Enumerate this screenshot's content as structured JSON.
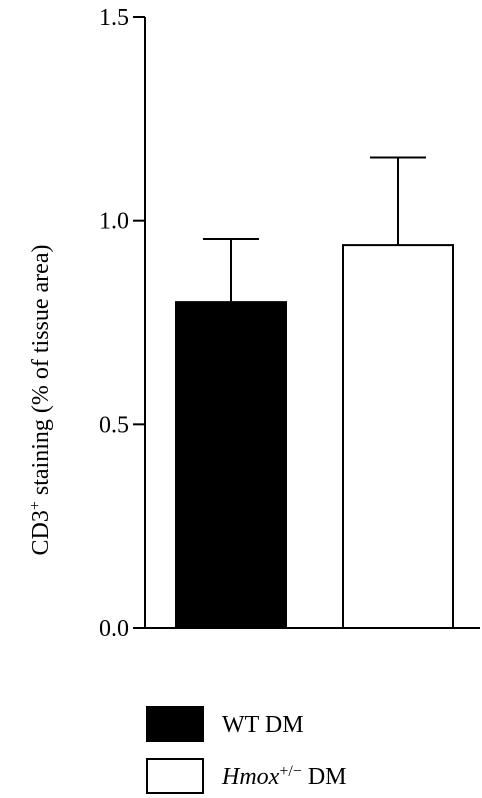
{
  "chart_data": {
    "type": "bar",
    "categories": [
      "WT DM",
      "Hmox+/− DM"
    ],
    "values": [
      0.8,
      0.94
    ],
    "errors": [
      0.155,
      0.215
    ],
    "bar_fill": [
      "#000000",
      "#ffffff"
    ],
    "bar_stroke": "#000000",
    "ylabel": {
      "main": "CD3",
      "sup": "+",
      "rest": " staining (% of tissue area)"
    },
    "ylim": [
      0,
      1.5
    ],
    "yticks": [
      0,
      0.5,
      1.0,
      1.5
    ],
    "ytick_labels": [
      "0.0",
      "0.5",
      "1.0",
      "1.5"
    ],
    "grid": false,
    "legend_position": "bottom",
    "legend": [
      {
        "label": "WT DM",
        "italic": "",
        "sup": "",
        "rest": "WT DM",
        "fill": "#000000"
      },
      {
        "label": "Hmox+/− DM",
        "italic": "Hmox",
        "sup": "+/−",
        "rest": " DM",
        "fill": "#ffffff"
      }
    ]
  }
}
